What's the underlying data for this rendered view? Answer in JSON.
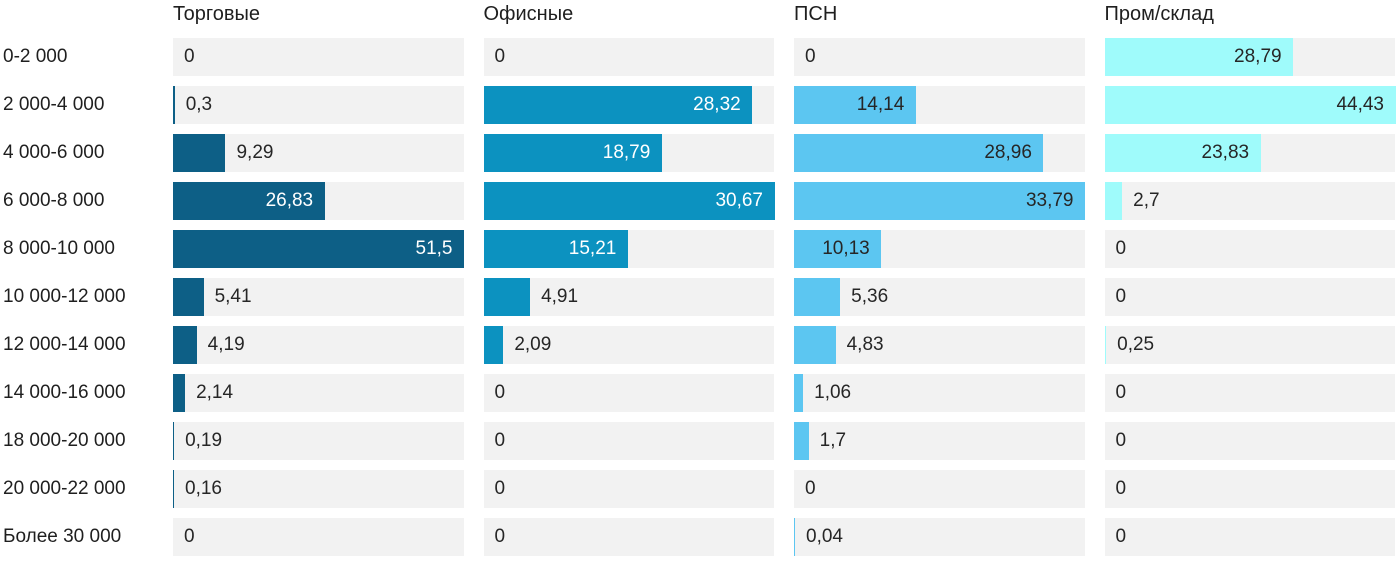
{
  "chart_data": {
    "type": "bar",
    "orientation": "horizontal",
    "scaling": "each column scaled to its own maximum value",
    "grid": false,
    "track_color": "#f2f2f2",
    "text_color": "#1f1f1f",
    "decimal_separator": ",",
    "categories": [
      "0-2 000",
      "2 000-4 000",
      "4 000-6 000",
      "6 000-8 000",
      "8 000-10 000",
      "10 000-12 000",
      "12 000-14 000",
      "14 000-16 000",
      "18 000-20 000",
      "20 000-22 000",
      "Более 30 000"
    ],
    "series": [
      {
        "name": "Торговые",
        "color": "#0d5f86",
        "label_color_inside": "#ffffff",
        "values": [
          0,
          0.3,
          9.29,
          26.83,
          51.5,
          5.41,
          4.19,
          2.14,
          0.19,
          0.16,
          0
        ]
      },
      {
        "name": "Офисные",
        "color": "#0c92c0",
        "label_color_inside": "#ffffff",
        "values": [
          0,
          28.32,
          18.79,
          30.67,
          15.21,
          4.91,
          2.09,
          0,
          0,
          0,
          0
        ]
      },
      {
        "name": "ПСН",
        "color": "#5cc6f1",
        "label_color_inside": "#262626",
        "values": [
          0,
          14.14,
          28.96,
          33.79,
          10.13,
          5.36,
          4.83,
          1.06,
          1.7,
          0,
          0.04
        ]
      },
      {
        "name": "Пром/склад",
        "color": "#9ffbfb",
        "label_color_inside": "#262626",
        "values": [
          28.79,
          44.43,
          23.83,
          2.7,
          0,
          0,
          0.25,
          0,
          0,
          0,
          0
        ]
      }
    ]
  }
}
